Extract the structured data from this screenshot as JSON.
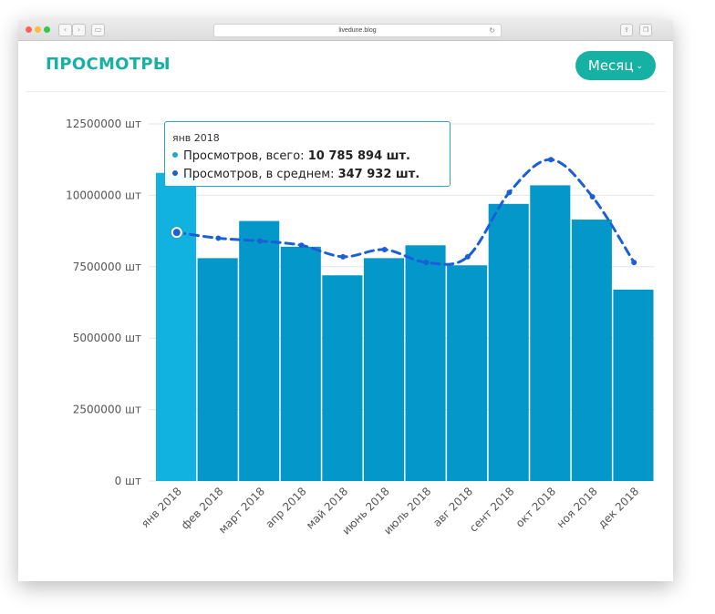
{
  "browser": {
    "url": "livedune.blog"
  },
  "header": {
    "title": "ПРОСМОТРЫ",
    "period_label": "Месяц"
  },
  "tooltip": {
    "title": "янв 2018",
    "row1_label": "Просмотров, всего: ",
    "row1_value": "10 785 894 шт.",
    "row2_label": "Просмотров, в среднем: ",
    "row2_value": "347 932 шт.",
    "row1_color": "#1aa9d0",
    "row2_color": "#1b5fd6"
  },
  "chart_data": {
    "type": "bar",
    "categories": [
      "янв 2018",
      "фев 2018",
      "март 2018",
      "апр 2018",
      "май 2018",
      "июнь 2018",
      "июль 2018",
      "авг 2018",
      "сент 2018",
      "окт 2018",
      "ноя 2018",
      "дек 2018"
    ],
    "series": [
      {
        "type": "bar",
        "values": [
          10785894,
          7800000,
          9100000,
          8200000,
          7200000,
          7800000,
          8250000,
          7550000,
          9700000,
          10350000,
          9150000,
          6700000
        ],
        "color": "#0398c9",
        "highlight_color": "#12b2e0"
      },
      {
        "type": "line",
        "dashed": true,
        "values": [
          8700000,
          8500000,
          8400000,
          8250000,
          7850000,
          8100000,
          7650000,
          7850000,
          10100000,
          11250000,
          9950000,
          7650000
        ],
        "color": "#1b5fd6"
      }
    ],
    "ylim": [
      0,
      12500000
    ],
    "yticks": [
      0,
      2500000,
      5000000,
      7500000,
      10000000,
      12500000
    ],
    "ytick_labels": [
      "0 шт",
      "2500000 шт",
      "5000000 шт",
      "7500000 шт",
      "10000000 шт",
      "12500000 шт"
    ],
    "highlighted_index": 0,
    "grid": true
  }
}
